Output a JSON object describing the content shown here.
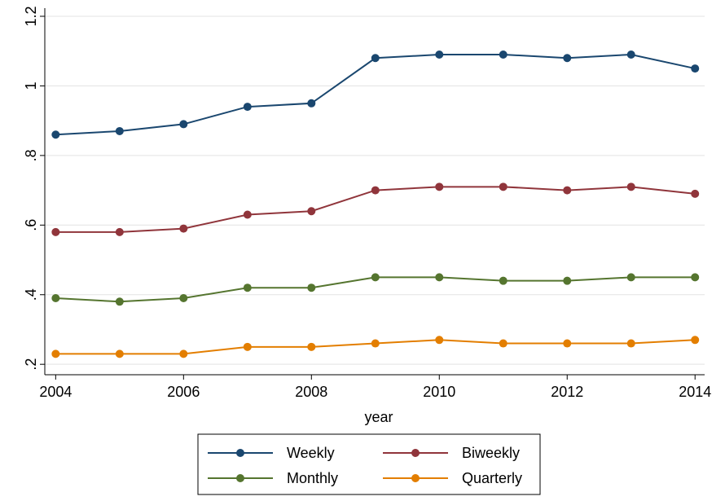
{
  "chart_data": {
    "type": "line",
    "x_label": "year",
    "x": [
      2004,
      2005,
      2006,
      2007,
      2008,
      2009,
      2010,
      2011,
      2012,
      2013,
      2014
    ],
    "series": [
      {
        "name": "Weekly",
        "color": "#1a476f",
        "values": [
          0.86,
          0.87,
          0.89,
          0.94,
          0.95,
          1.08,
          1.09,
          1.09,
          1.08,
          1.09,
          1.05
        ]
      },
      {
        "name": "Biweekly",
        "color": "#90353b",
        "values": [
          0.58,
          0.58,
          0.59,
          0.63,
          0.64,
          0.7,
          0.71,
          0.71,
          0.7,
          0.71,
          0.69
        ]
      },
      {
        "name": "Monthly",
        "color": "#55752f",
        "values": [
          0.39,
          0.38,
          0.39,
          0.42,
          0.42,
          0.45,
          0.45,
          0.44,
          0.44,
          0.45,
          0.45
        ]
      },
      {
        "name": "Quarterly",
        "color": "#e37e00",
        "values": [
          0.23,
          0.23,
          0.23,
          0.25,
          0.25,
          0.26,
          0.27,
          0.26,
          0.26,
          0.26,
          0.27
        ]
      }
    ],
    "xlim": [
      2003.83,
      2014.15
    ],
    "xticks": [
      2004,
      2006,
      2008,
      2010,
      2012,
      2014
    ],
    "ylim": [
      0.17,
      1.2
    ],
    "yticks": [
      {
        "value": 0.2,
        "label": ".2"
      },
      {
        "value": 0.4,
        "label": ".4"
      },
      {
        "value": 0.6,
        "label": ".6"
      },
      {
        "value": 0.8,
        "label": ".8"
      },
      1,
      1.2
    ],
    "grid": true,
    "legend": "bottom"
  }
}
